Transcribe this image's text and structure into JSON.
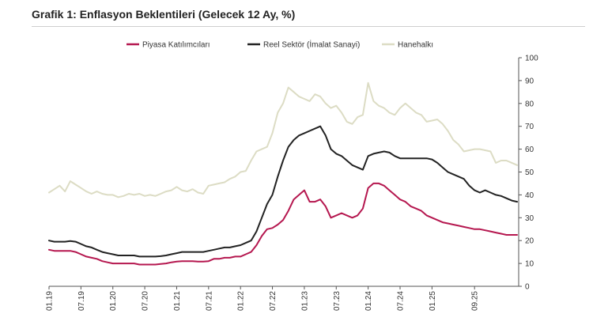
{
  "title": "Grafik 1: Enflasyon Beklentileri (Gelecek 12 Ay, %)",
  "chart_data": {
    "type": "line",
    "title": "Grafik 1: Enflasyon Beklentileri (Gelecek 12 Ay, %)",
    "ylim": [
      0,
      100
    ],
    "yticks": [
      0,
      10,
      20,
      30,
      40,
      50,
      60,
      70,
      80,
      90,
      100
    ],
    "x_start": "01.19",
    "x_end": "09.25",
    "xticks": [
      "01.19",
      "07.19",
      "01.20",
      "07.20",
      "01.21",
      "07.21",
      "01.22",
      "07.22",
      "01.23",
      "07.23",
      "01.24",
      "07.24",
      "01.25",
      "09.25"
    ],
    "grid": false,
    "legend_position": "top",
    "series": [
      {
        "name": "Piyasa Katılımcıları",
        "color": "#b5174f",
        "values": [
          16,
          15.5,
          15.5,
          15.5,
          15.5,
          15,
          14,
          13,
          12.5,
          12,
          11,
          10.5,
          10,
          10,
          10,
          10,
          10,
          9.5,
          9.5,
          9.5,
          9.5,
          9.8,
          10,
          10.5,
          10.8,
          11,
          11,
          11,
          10.8,
          10.8,
          11,
          12,
          12,
          12.5,
          12.5,
          13,
          13,
          14,
          15,
          18,
          22,
          25,
          25.5,
          27,
          29,
          33,
          38,
          40,
          42,
          37,
          37,
          38,
          35,
          30,
          31,
          32,
          31,
          30,
          31,
          34,
          43,
          45,
          45,
          44,
          42,
          40,
          38,
          37,
          35,
          34,
          33,
          31,
          30,
          29,
          28,
          27.5,
          27,
          26.5,
          26,
          25.5,
          25,
          25,
          24.5,
          24,
          23.5,
          23,
          22.5,
          22.5,
          22.5
        ]
      },
      {
        "name": "Reel Sektör (İmalat Sanayi)",
        "color": "#222222",
        "values": [
          20,
          19.5,
          19.5,
          19.5,
          19.8,
          19.5,
          18.5,
          17.5,
          17,
          16,
          15,
          14.5,
          14,
          13.5,
          13.5,
          13.5,
          13.5,
          13,
          13,
          13,
          13,
          13.2,
          13.5,
          14,
          14.5,
          15,
          15,
          15,
          15,
          15,
          15.5,
          16,
          16.5,
          17,
          17,
          17.5,
          18,
          19,
          20,
          24,
          30,
          36,
          40,
          48,
          55,
          61,
          64,
          66,
          67,
          68,
          69,
          70,
          66,
          60,
          58,
          57,
          55,
          53,
          52,
          51,
          57,
          58,
          58.5,
          59,
          58.5,
          57,
          56,
          56,
          56,
          56,
          56,
          56,
          55.5,
          54,
          52,
          50,
          49,
          48,
          47,
          44,
          42,
          41,
          42,
          41,
          40,
          39.5,
          38.5,
          37.5,
          37
        ]
      },
      {
        "name": "Hanehalkı",
        "color": "#dcdcc4",
        "values": [
          41,
          42.5,
          44,
          41.5,
          46,
          44.5,
          43,
          41.5,
          40.5,
          41.5,
          40.5,
          40,
          40,
          39,
          39.5,
          40.5,
          40,
          40.5,
          39.5,
          40,
          39.5,
          40.5,
          41.5,
          42,
          43.5,
          42,
          41.5,
          42.5,
          41,
          40.5,
          44,
          44.5,
          45,
          45.5,
          47,
          48,
          50,
          50.5,
          55,
          59,
          60,
          61,
          67,
          76,
          80,
          87,
          85,
          83,
          82,
          81,
          84,
          83,
          80,
          78,
          79,
          76,
          72,
          71,
          74,
          75,
          89,
          81,
          79,
          78,
          76,
          75,
          78,
          80,
          78,
          76,
          75,
          72,
          72.5,
          73,
          71,
          68,
          64,
          62,
          59,
          59.5,
          60,
          60,
          59.5,
          59,
          54,
          55,
          55,
          54,
          53
        ]
      }
    ]
  }
}
